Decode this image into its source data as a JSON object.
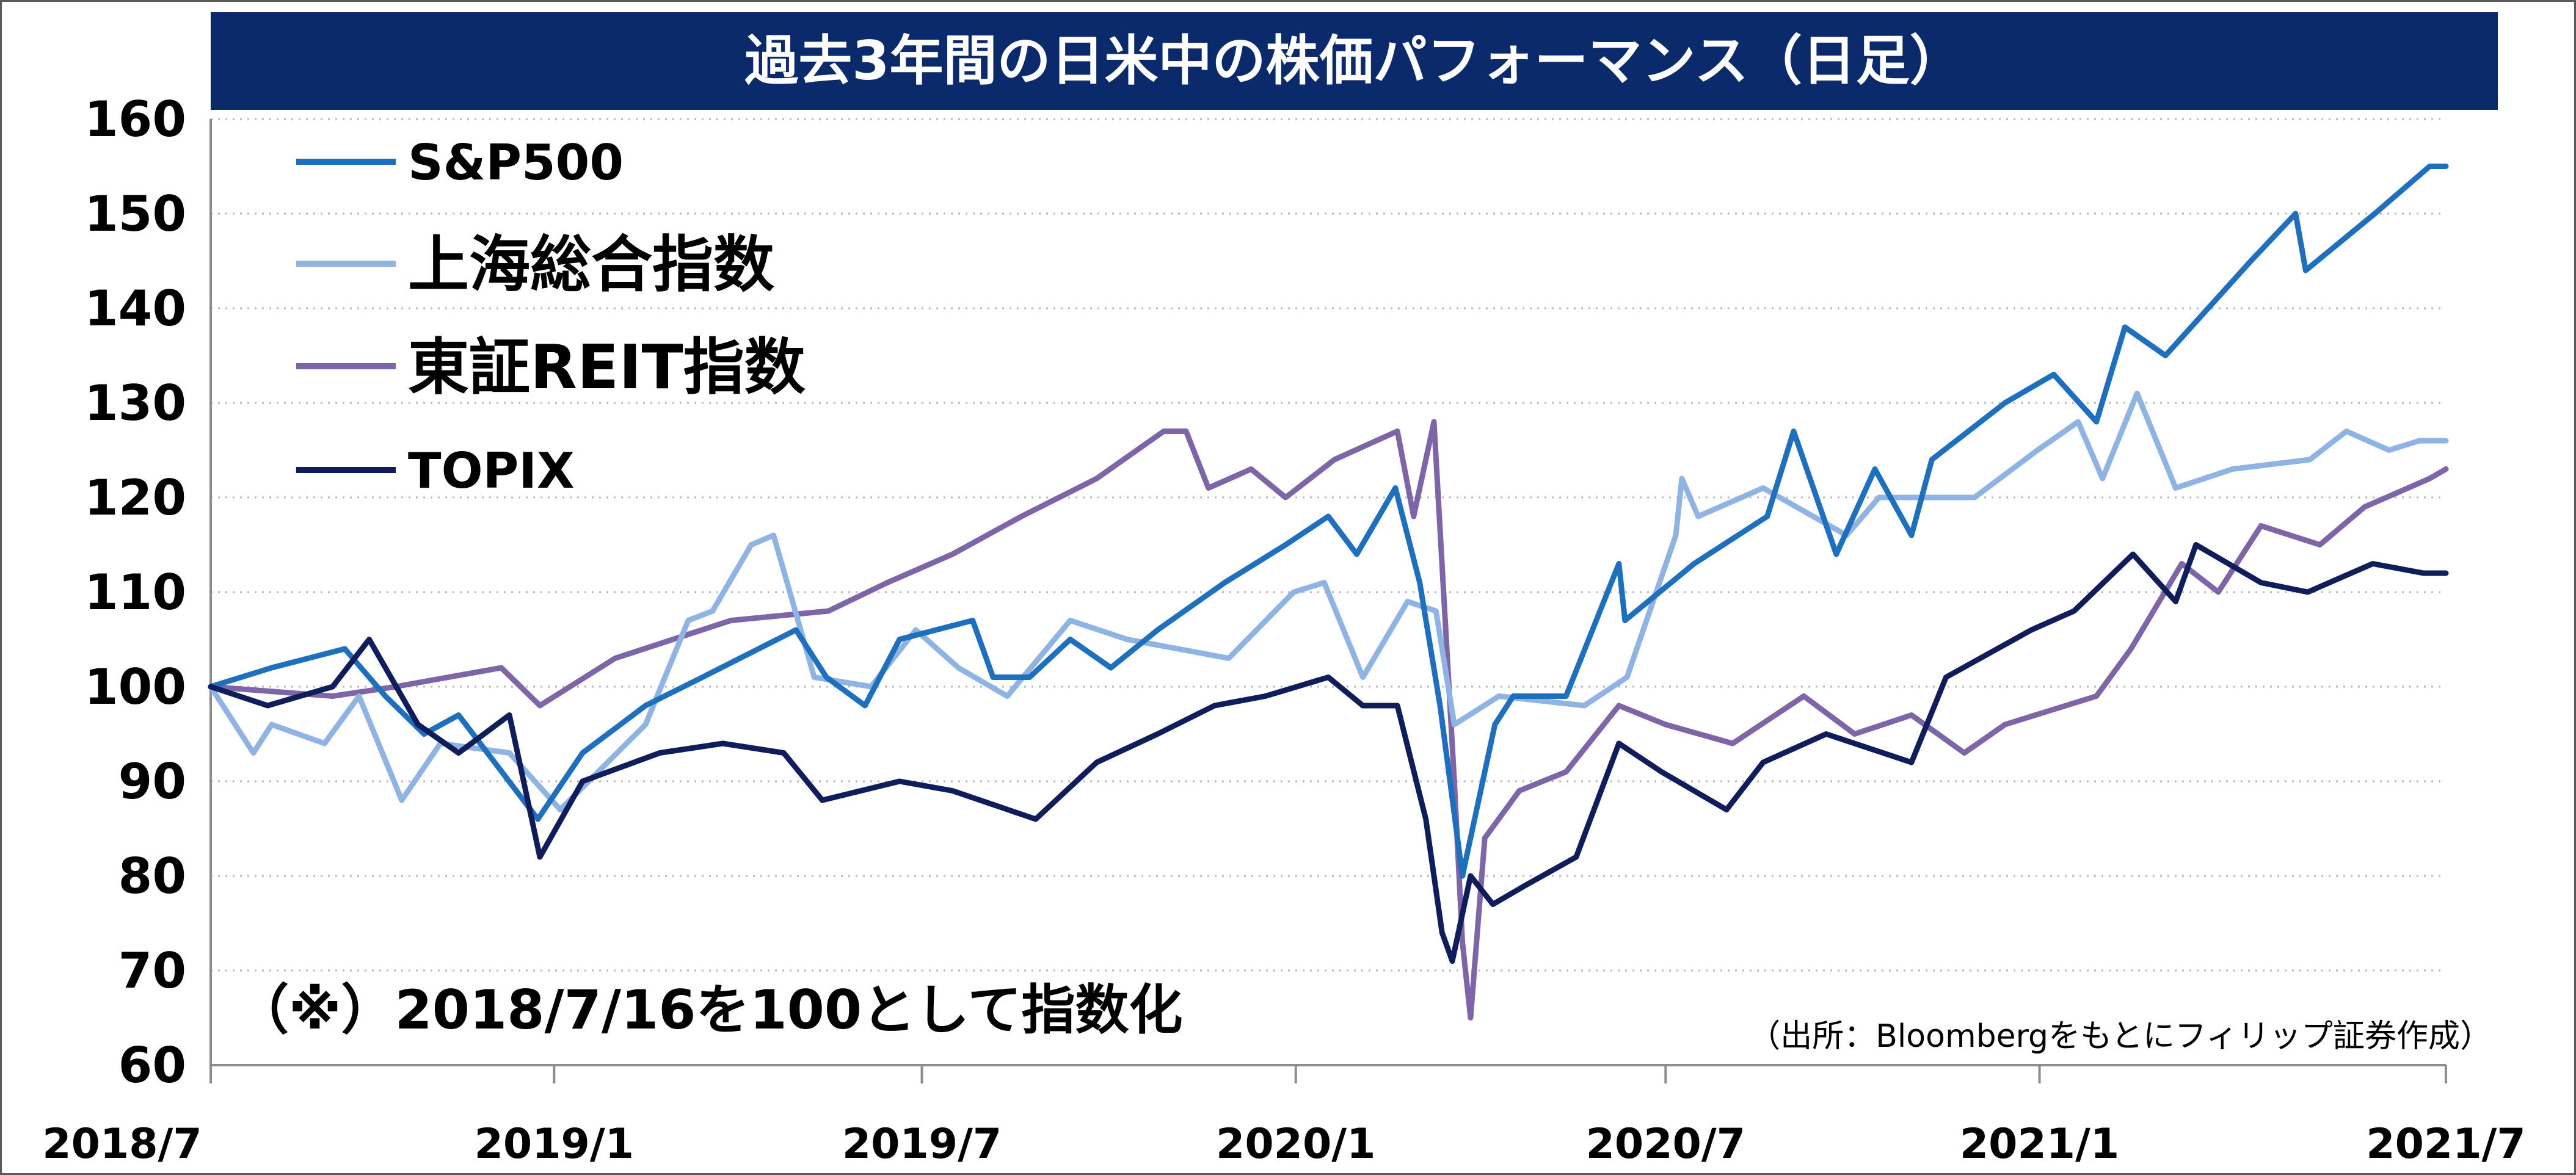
{
  "chart_data": {
    "type": "line",
    "title": "過去3年間の日米中の株価パフォーマンス（日足）",
    "note": "（※）2018/7/16を100として指数化",
    "source": "（出所：Bloombergをもとにフィリップ証券作成）",
    "ylim": [
      60,
      160
    ],
    "yticks": [
      "160",
      "150",
      "140",
      "130",
      "120",
      "110",
      "100",
      "90",
      "80",
      "70",
      "60"
    ],
    "xlim": [
      "2018-07-16",
      "2021-07-20"
    ],
    "xticks": [
      {
        "date": "2018-07-16",
        "label": "2018/7"
      },
      {
        "date": "2019-01-01",
        "label": "2019/1"
      },
      {
        "date": "2019-07-01",
        "label": "2019/7"
      },
      {
        "date": "2020-01-01",
        "label": "2020/1"
      },
      {
        "date": "2020-07-01",
        "label": "2020/7"
      },
      {
        "date": "2021-01-01",
        "label": "2021/1"
      },
      {
        "date": "2021-07-20",
        "label": "2021/7"
      }
    ],
    "grid": true,
    "legend_position": "top-left",
    "series": [
      {
        "name": "S&P500",
        "color": "#1F6FBF",
        "points": [
          [
            "2018-07-16",
            100
          ],
          [
            "2018-08-15",
            102
          ],
          [
            "2018-09-20",
            104
          ],
          [
            "2018-10-10",
            99
          ],
          [
            "2018-10-29",
            95
          ],
          [
            "2018-11-15",
            97
          ],
          [
            "2018-12-24",
            86
          ],
          [
            "2019-01-15",
            93
          ],
          [
            "2019-02-15",
            98
          ],
          [
            "2019-03-15",
            101
          ],
          [
            "2019-04-30",
            106
          ],
          [
            "2019-05-15",
            101
          ],
          [
            "2019-06-03",
            98
          ],
          [
            "2019-06-20",
            105
          ],
          [
            "2019-07-26",
            107
          ],
          [
            "2019-08-05",
            101
          ],
          [
            "2019-08-23",
            101
          ],
          [
            "2019-09-12",
            105
          ],
          [
            "2019-10-02",
            102
          ],
          [
            "2019-10-25",
            106
          ],
          [
            "2019-11-27",
            111
          ],
          [
            "2019-12-27",
            115
          ],
          [
            "2020-01-17",
            118
          ],
          [
            "2020-01-31",
            114
          ],
          [
            "2020-02-19",
            121
          ],
          [
            "2020-03-02",
            111
          ],
          [
            "2020-03-12",
            98
          ],
          [
            "2020-03-23",
            80
          ],
          [
            "2020-04-08",
            96
          ],
          [
            "2020-04-17",
            99
          ],
          [
            "2020-05-13",
            99
          ],
          [
            "2020-06-08",
            113
          ],
          [
            "2020-06-11",
            107
          ],
          [
            "2020-07-15",
            113
          ],
          [
            "2020-08-20",
            118
          ],
          [
            "2020-09-02",
            127
          ],
          [
            "2020-09-23",
            114
          ],
          [
            "2020-10-12",
            123
          ],
          [
            "2020-10-30",
            116
          ],
          [
            "2020-11-09",
            124
          ],
          [
            "2020-12-15",
            130
          ],
          [
            "2021-01-08",
            133
          ],
          [
            "2021-01-29",
            128
          ],
          [
            "2021-02-12",
            138
          ],
          [
            "2021-03-04",
            135
          ],
          [
            "2021-04-15",
            145
          ],
          [
            "2021-05-07",
            150
          ],
          [
            "2021-05-12",
            144
          ],
          [
            "2021-06-15",
            150
          ],
          [
            "2021-07-12",
            155
          ],
          [
            "2021-07-20",
            155
          ]
        ]
      },
      {
        "name": "上海総合指数",
        "color": "#8FB4E3",
        "points": [
          [
            "2018-07-16",
            100
          ],
          [
            "2018-08-06",
            93
          ],
          [
            "2018-08-15",
            96
          ],
          [
            "2018-09-10",
            94
          ],
          [
            "2018-09-27",
            99
          ],
          [
            "2018-10-18",
            88
          ],
          [
            "2018-11-06",
            94
          ],
          [
            "2018-12-10",
            93
          ],
          [
            "2019-01-04",
            87
          ],
          [
            "2019-02-15",
            96
          ],
          [
            "2019-03-08",
            107
          ],
          [
            "2019-03-20",
            108
          ],
          [
            "2019-04-08",
            115
          ],
          [
            "2019-04-19",
            116
          ],
          [
            "2019-05-09",
            101
          ],
          [
            "2019-06-06",
            100
          ],
          [
            "2019-06-28",
            106
          ],
          [
            "2019-07-19",
            102
          ],
          [
            "2019-08-12",
            99
          ],
          [
            "2019-09-12",
            107
          ],
          [
            "2019-10-10",
            105
          ],
          [
            "2019-11-29",
            103
          ],
          [
            "2019-12-31",
            110
          ],
          [
            "2020-01-15",
            111
          ],
          [
            "2020-02-03",
            101
          ],
          [
            "2020-02-25",
            109
          ],
          [
            "2020-03-10",
            108
          ],
          [
            "2020-03-19",
            96
          ],
          [
            "2020-04-10",
            99
          ],
          [
            "2020-05-22",
            98
          ],
          [
            "2020-06-12",
            101
          ],
          [
            "2020-07-06",
            116
          ],
          [
            "2020-07-09",
            122
          ],
          [
            "2020-07-17",
            118
          ],
          [
            "2020-08-18",
            121
          ],
          [
            "2020-09-28",
            116
          ],
          [
            "2020-10-14",
            120
          ],
          [
            "2020-11-30",
            120
          ],
          [
            "2020-12-31",
            125
          ],
          [
            "2021-01-20",
            128
          ],
          [
            "2021-02-01",
            122
          ],
          [
            "2021-02-18",
            131
          ],
          [
            "2021-03-09",
            121
          ],
          [
            "2021-04-06",
            123
          ],
          [
            "2021-05-14",
            124
          ],
          [
            "2021-06-01",
            127
          ],
          [
            "2021-06-22",
            125
          ],
          [
            "2021-07-07",
            126
          ],
          [
            "2021-07-20",
            126
          ]
        ]
      },
      {
        "name": "東証REIT指数",
        "color": "#7E65A8",
        "points": [
          [
            "2018-07-16",
            100
          ],
          [
            "2018-09-14",
            99
          ],
          [
            "2018-10-15",
            100
          ],
          [
            "2018-12-06",
            102
          ],
          [
            "2018-12-25",
            98
          ],
          [
            "2019-01-31",
            103
          ],
          [
            "2019-03-29",
            107
          ],
          [
            "2019-05-16",
            108
          ],
          [
            "2019-06-14",
            111
          ],
          [
            "2019-07-16",
            114
          ],
          [
            "2019-08-19",
            118
          ],
          [
            "2019-09-25",
            122
          ],
          [
            "2019-10-28",
            127
          ],
          [
            "2019-11-08",
            127
          ],
          [
            "2019-11-19",
            121
          ],
          [
            "2019-12-10",
            123
          ],
          [
            "2019-12-27",
            120
          ],
          [
            "2020-01-20",
            124
          ],
          [
            "2020-02-20",
            127
          ],
          [
            "2020-02-28",
            118
          ],
          [
            "2020-03-09",
            128
          ],
          [
            "2020-03-19",
            90
          ],
          [
            "2020-03-23",
            73
          ],
          [
            "2020-03-27",
            65
          ],
          [
            "2020-04-03",
            84
          ],
          [
            "2020-04-20",
            89
          ],
          [
            "2020-05-13",
            91
          ],
          [
            "2020-06-08",
            98
          ],
          [
            "2020-07-01",
            96
          ],
          [
            "2020-08-03",
            94
          ],
          [
            "2020-09-07",
            99
          ],
          [
            "2020-10-02",
            95
          ],
          [
            "2020-10-30",
            97
          ],
          [
            "2020-11-25",
            93
          ],
          [
            "2020-12-15",
            96
          ],
          [
            "2021-01-29",
            99
          ],
          [
            "2021-02-15",
            104
          ],
          [
            "2021-03-12",
            113
          ],
          [
            "2021-03-30",
            110
          ],
          [
            "2021-04-20",
            117
          ],
          [
            "2021-05-19",
            115
          ],
          [
            "2021-06-10",
            119
          ],
          [
            "2021-07-12",
            122
          ],
          [
            "2021-07-20",
            123
          ]
        ]
      },
      {
        "name": "TOPIX",
        "color": "#0F1E5B",
        "points": [
          [
            "2018-07-16",
            100
          ],
          [
            "2018-08-13",
            98
          ],
          [
            "2018-09-14",
            100
          ],
          [
            "2018-10-02",
            105
          ],
          [
            "2018-10-26",
            96
          ],
          [
            "2018-11-15",
            93
          ],
          [
            "2018-12-10",
            97
          ],
          [
            "2018-12-25",
            82
          ],
          [
            "2019-01-15",
            90
          ],
          [
            "2019-02-22",
            93
          ],
          [
            "2019-03-25",
            94
          ],
          [
            "2019-04-24",
            93
          ],
          [
            "2019-05-13",
            88
          ],
          [
            "2019-06-20",
            90
          ],
          [
            "2019-07-16",
            89
          ],
          [
            "2019-08-26",
            86
          ],
          [
            "2019-09-25",
            92
          ],
          [
            "2019-10-25",
            95
          ],
          [
            "2019-11-22",
            98
          ],
          [
            "2019-12-17",
            99
          ],
          [
            "2020-01-17",
            101
          ],
          [
            "2020-02-03",
            98
          ],
          [
            "2020-02-20",
            98
          ],
          [
            "2020-03-05",
            86
          ],
          [
            "2020-03-13",
            74
          ],
          [
            "2020-03-18",
            71
          ],
          [
            "2020-03-27",
            80
          ],
          [
            "2020-04-07",
            77
          ],
          [
            "2020-04-23",
            79
          ],
          [
            "2020-05-18",
            82
          ],
          [
            "2020-06-08",
            94
          ],
          [
            "2020-06-29",
            91
          ],
          [
            "2020-07-31",
            87
          ],
          [
            "2020-08-18",
            92
          ],
          [
            "2020-09-18",
            95
          ],
          [
            "2020-10-30",
            92
          ],
          [
            "2020-11-16",
            101
          ],
          [
            "2020-12-28",
            106
          ],
          [
            "2021-01-18",
            108
          ],
          [
            "2021-02-16",
            114
          ],
          [
            "2021-03-09",
            109
          ],
          [
            "2021-03-19",
            115
          ],
          [
            "2021-04-20",
            111
          ],
          [
            "2021-05-13",
            110
          ],
          [
            "2021-06-14",
            113
          ],
          [
            "2021-07-09",
            112
          ],
          [
            "2021-07-20",
            112
          ]
        ]
      }
    ]
  }
}
